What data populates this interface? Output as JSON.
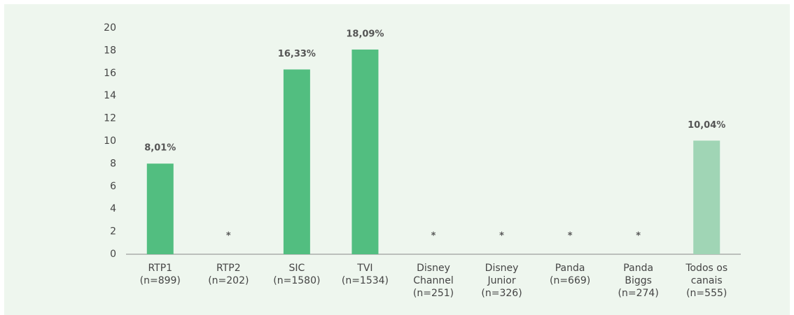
{
  "chart_data": {
    "type": "bar",
    "categories": [
      [
        "RTP1",
        "(n=899)"
      ],
      [
        "RTP2",
        "(n=202)"
      ],
      [
        "SIC",
        "(n=1580)"
      ],
      [
        "TVI",
        "(n=1534)"
      ],
      [
        "Disney",
        "Channel",
        "(n=251)"
      ],
      [
        "Disney",
        "Junior",
        "(n=326)"
      ],
      [
        "Panda",
        "(n=669)"
      ],
      [
        "Panda",
        "Biggs",
        "(n=274)"
      ],
      [
        "Todos os",
        "canais",
        "(n=555)"
      ]
    ],
    "values": [
      8.01,
      null,
      16.33,
      18.09,
      null,
      null,
      null,
      null,
      10.04
    ],
    "value_labels": [
      "8,01%",
      "*",
      "16,33%",
      "18,09%",
      "*",
      "*",
      "*",
      "*",
      "10,04%"
    ],
    "colors": [
      "#52be80",
      "#52be80",
      "#52be80",
      "#52be80",
      "#52be80",
      "#52be80",
      "#52be80",
      "#52be80",
      "#a0d5b5"
    ],
    "ylim": [
      0,
      20
    ],
    "yticks": [
      0,
      2,
      4,
      6,
      8,
      10,
      12,
      14,
      16,
      18,
      20
    ]
  }
}
